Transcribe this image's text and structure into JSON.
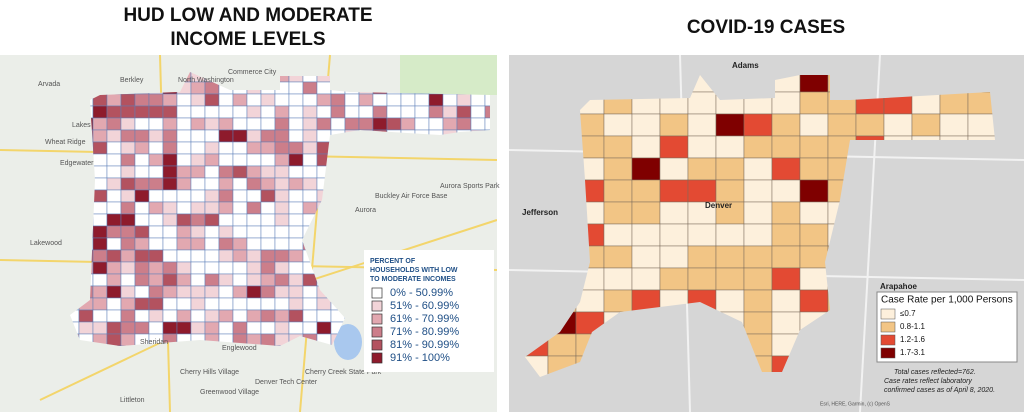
{
  "left": {
    "title": [
      "HUD LOW AND MODERATE",
      "INCOME LEVELS"
    ],
    "places": [
      "Arvada",
      "Berkley",
      "North Washington",
      "Commerce City",
      "Lakes",
      "Wheat Ridge",
      "Edgewater",
      "Lakewood",
      "Aurora",
      "Buckley Air Force Base",
      "Aurora Sports Park",
      "Sheridan",
      "Englewood",
      "Cherry Hills Village",
      "Greenwood Village",
      "Littleton",
      "Denver Tech Center",
      "Cherry Creek State Park"
    ],
    "legend": {
      "title": [
        "PERCENT OF",
        "HOUSEHOLDS WITH LOW",
        "TO MODERATE INCOMES"
      ],
      "items": [
        "0% - 50.99%",
        "51% - 60.99%",
        "61% - 70.99%",
        "71% - 80.99%",
        "81% - 90.99%",
        "91% - 100%"
      ]
    }
  },
  "right": {
    "title": "COVID-19 CASES",
    "places": [
      "Adams",
      "Jefferson",
      "Denver",
      "Arapahoe"
    ],
    "legend": {
      "title": "Case Rate per 1,000 Persons",
      "items": [
        "≤0.7",
        "0.8-1.1",
        "1.2-1.6",
        "1.7-3.1"
      ]
    },
    "notes": [
      "Total cases reflected=762.",
      "Case rates reflect laboratory",
      "confirmed cases as of April 8, 2020."
    ],
    "attribution": "Esri, HERE, Garmin, (c) OpenS"
  }
}
